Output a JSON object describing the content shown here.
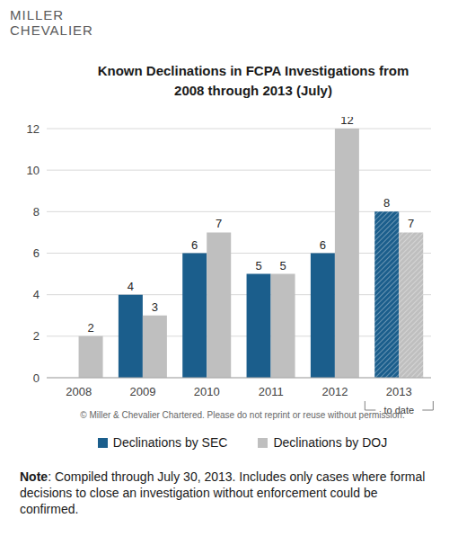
{
  "chart_data": {
    "type": "bar",
    "logo": "MILLER CHEVALIER",
    "title": "Known Declinations in FCPA Investigations from 2008 through 2013 (July)",
    "categories": [
      "2008",
      "2009",
      "2010",
      "2011",
      "2012",
      "2013"
    ],
    "series": [
      {
        "name": "Declinations by SEC",
        "color": "#1b5e8c",
        "values": [
          null,
          4,
          6,
          5,
          6,
          8
        ]
      },
      {
        "name": "Declinations by DOJ",
        "color": "#bfbfbf",
        "values": [
          2,
          3,
          7,
          5,
          12,
          7
        ]
      }
    ],
    "ylim": [
      0,
      12
    ],
    "yticks": [
      0,
      2,
      4,
      6,
      8,
      10,
      12
    ],
    "grid": true,
    "data_labels": true,
    "legend": "bottom",
    "annotations": [
      {
        "text": "to date",
        "category": "2013"
      }
    ],
    "copyright": "© Miller & Chevalier Chartered. Please do not reprint or reuse without permission.",
    "note": "Note: Compiled through July 30, 2013. Includes only cases where formal decisions to close an investigation without enforcement could be confirmed."
  }
}
